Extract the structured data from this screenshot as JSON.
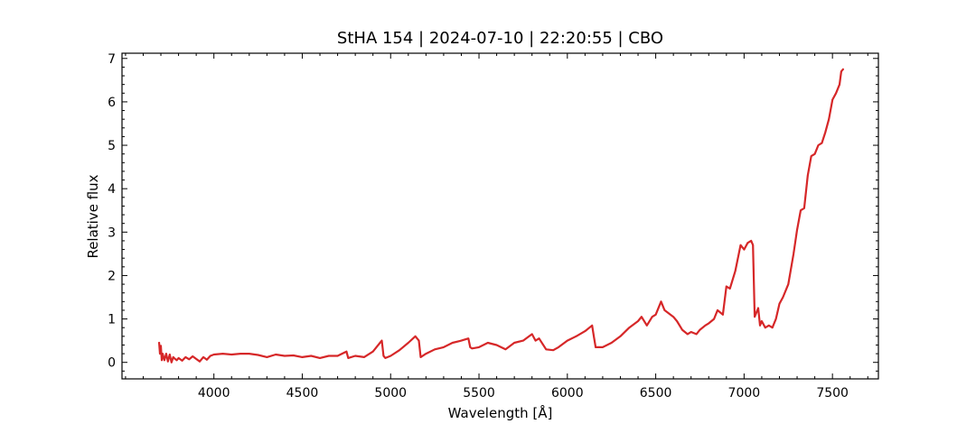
{
  "chart_data": {
    "type": "line",
    "title": "StHA 154 | 2024-07-10 | 22:20:55 | CBO",
    "xlabel": "Wavelength [Å]",
    "ylabel": "Relative flux",
    "xlim": [
      3480,
      7760
    ],
    "ylim": [
      -0.38,
      7.12
    ],
    "x_ticks": [
      4000,
      4500,
      5000,
      5500,
      6000,
      6500,
      7000,
      7500
    ],
    "x_tick_labels": [
      "4000",
      "4500",
      "5000",
      "5500",
      "6000",
      "6500",
      "7000",
      "7500"
    ],
    "x_minor_step": 100,
    "y_ticks": [
      0,
      1,
      2,
      3,
      4,
      5,
      6,
      7
    ],
    "y_tick_labels": [
      "0",
      "1",
      "2",
      "3",
      "4",
      "5",
      "6",
      "7"
    ],
    "y_minor_step": 0.2,
    "grid": false,
    "legend": "none",
    "line_color": "#d62728",
    "series": [
      {
        "x": [
          3690,
          3695,
          3700,
          3705,
          3710,
          3720,
          3730,
          3740,
          3750,
          3760,
          3770,
          3780,
          3790,
          3800,
          3820,
          3840,
          3860,
          3880,
          3900,
          3920,
          3940,
          3960,
          3980,
          4000,
          4050,
          4100,
          4150,
          4200,
          4250,
          4300,
          4350,
          4400,
          4450,
          4500,
          4550,
          4600,
          4650,
          4700,
          4750,
          4760,
          4800,
          4850,
          4900,
          4940,
          4950,
          4960,
          4970,
          5000,
          5050,
          5100,
          5140,
          5160,
          5170,
          5200,
          5250,
          5300,
          5350,
          5400,
          5440,
          5450,
          5460,
          5500,
          5550,
          5600,
          5650,
          5700,
          5750,
          5800,
          5820,
          5840,
          5880,
          5920,
          5950,
          6000,
          6050,
          6100,
          6140,
          6150,
          6160,
          6200,
          6250,
          6300,
          6350,
          6400,
          6420,
          6450,
          6480,
          6500,
          6530,
          6550,
          6600,
          6620,
          6650,
          6680,
          6700,
          6730,
          6750,
          6780,
          6800,
          6830,
          6850,
          6880,
          6900,
          6920,
          6950,
          6980,
          7000,
          7020,
          7040,
          7050,
          7060,
          7080,
          7090,
          7100,
          7120,
          7140,
          7160,
          7180,
          7200,
          7220,
          7250,
          7280,
          7300,
          7320,
          7340,
          7360,
          7380,
          7400,
          7420,
          7440,
          7460,
          7480,
          7500,
          7520,
          7540,
          7550,
          7560
        ],
        "y": [
          0.45,
          0.2,
          0.38,
          0.05,
          0.2,
          0.05,
          0.2,
          0.02,
          0.18,
          0.0,
          0.12,
          0.08,
          0.05,
          0.1,
          0.04,
          0.12,
          0.07,
          0.14,
          0.08,
          0.02,
          0.12,
          0.06,
          0.15,
          0.18,
          0.2,
          0.18,
          0.2,
          0.2,
          0.17,
          0.12,
          0.18,
          0.15,
          0.16,
          0.12,
          0.15,
          0.1,
          0.15,
          0.15,
          0.25,
          0.1,
          0.15,
          0.12,
          0.25,
          0.45,
          0.5,
          0.15,
          0.1,
          0.15,
          0.28,
          0.45,
          0.6,
          0.5,
          0.12,
          0.2,
          0.3,
          0.35,
          0.45,
          0.5,
          0.55,
          0.35,
          0.32,
          0.35,
          0.45,
          0.4,
          0.3,
          0.45,
          0.5,
          0.65,
          0.5,
          0.55,
          0.3,
          0.28,
          0.35,
          0.5,
          0.6,
          0.72,
          0.85,
          0.6,
          0.35,
          0.35,
          0.45,
          0.6,
          0.8,
          0.95,
          1.05,
          0.85,
          1.05,
          1.1,
          1.4,
          1.2,
          1.05,
          0.95,
          0.75,
          0.65,
          0.7,
          0.65,
          0.75,
          0.85,
          0.9,
          1.0,
          1.2,
          1.1,
          1.75,
          1.7,
          2.1,
          2.7,
          2.6,
          2.75,
          2.8,
          2.7,
          1.05,
          1.25,
          0.85,
          0.95,
          0.8,
          0.85,
          0.8,
          1.0,
          1.35,
          1.5,
          1.8,
          2.5,
          3.05,
          3.5,
          3.55,
          4.3,
          4.75,
          4.8,
          5.0,
          5.05,
          5.3,
          5.6,
          6.05,
          6.2,
          6.4,
          6.7,
          6.75
        ]
      }
    ]
  }
}
